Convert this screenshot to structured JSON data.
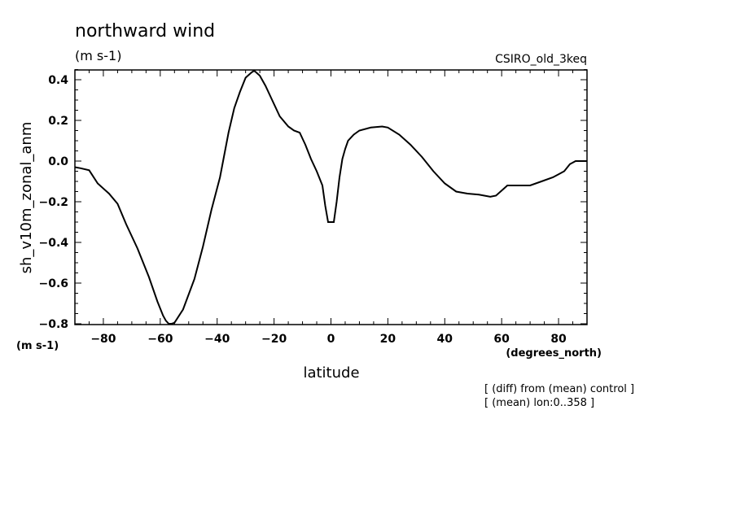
{
  "header": {
    "title": "northward wind",
    "units": "(m s-1)",
    "model": "CSIRO_old_3keq"
  },
  "notes": {
    "line1": "[ (diff) from (mean) control ]",
    "line2": "[ (mean) lon:0..358 ]"
  },
  "chart_data": {
    "type": "line",
    "title": "northward wind",
    "xlabel": "latitude",
    "xunits": "(degrees_north)",
    "ylabel": "sh_v10m_zonal_anm",
    "yunits": "(m s-1)",
    "xlim": [
      -90,
      90
    ],
    "ylim": [
      -0.8,
      0.45
    ],
    "grid": false,
    "xticks": [
      -80,
      -60,
      -40,
      -20,
      0,
      20,
      40,
      60,
      80
    ],
    "xtick_labels": [
      "−80",
      "−60",
      "−40",
      "−20",
      "0",
      "20",
      "40",
      "60",
      "80"
    ],
    "yticks": [
      0.4,
      0.2,
      0.0,
      -0.2,
      -0.4,
      -0.6,
      -0.8
    ],
    "ytick_labels": [
      "0.4",
      "0.2",
      "0.0",
      "−0.2",
      "−0.4",
      "−0.6",
      "−0.8"
    ],
    "series": [
      {
        "x": [
          -90,
          -88,
          -85,
          -82,
          -78,
          -75,
          -72,
          -68,
          -64,
          -61,
          -59,
          -58,
          -57,
          -56,
          -55,
          -52,
          -48,
          -45,
          -42,
          -39,
          -36,
          -34,
          -32,
          -30,
          -28,
          -27,
          -25,
          -23,
          -21,
          -18,
          -15,
          -13,
          -11,
          -9,
          -7,
          -5,
          -3,
          -2,
          -1,
          0,
          1,
          2,
          3,
          4,
          5,
          6,
          8,
          10,
          14,
          18,
          20,
          24,
          28,
          32,
          36,
          40,
          44,
          48,
          52,
          56,
          58,
          60,
          62,
          64,
          66,
          68,
          70,
          74,
          78,
          80,
          82,
          84,
          86,
          88,
          90
        ],
        "y": [
          -0.03,
          -0.035,
          -0.045,
          -0.11,
          -0.16,
          -0.21,
          -0.31,
          -0.43,
          -0.57,
          -0.69,
          -0.76,
          -0.785,
          -0.8,
          -0.8,
          -0.795,
          -0.73,
          -0.58,
          -0.42,
          -0.24,
          -0.08,
          0.14,
          0.26,
          0.34,
          0.41,
          0.435,
          0.445,
          0.42,
          0.37,
          0.31,
          0.22,
          0.17,
          0.15,
          0.14,
          0.08,
          0.01,
          -0.05,
          -0.12,
          -0.22,
          -0.3,
          -0.3,
          -0.3,
          -0.2,
          -0.08,
          0.01,
          0.06,
          0.1,
          0.13,
          0.15,
          0.165,
          0.17,
          0.165,
          0.13,
          0.08,
          0.02,
          -0.05,
          -0.11,
          -0.15,
          -0.16,
          -0.165,
          -0.175,
          -0.17,
          -0.145,
          -0.12,
          -0.12,
          -0.12,
          -0.12,
          -0.12,
          -0.1,
          -0.08,
          -0.065,
          -0.05,
          -0.015,
          0.0,
          0.0,
          0.0
        ]
      }
    ]
  }
}
